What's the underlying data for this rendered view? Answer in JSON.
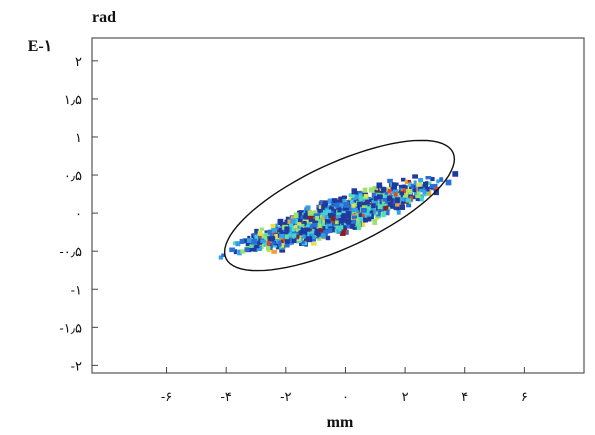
{
  "chart_data": {
    "type": "scatter",
    "x_unit": "mm",
    "y_unit": "rad",
    "y_scale_label": "E-۱",
    "xlim": [
      -8.5,
      8
    ],
    "ylim": [
      -2.1,
      2.3
    ],
    "x_ticks": [
      {
        "value": -6,
        "label": "-۶"
      },
      {
        "value": -4,
        "label": "-۴"
      },
      {
        "value": -2,
        "label": "-۲"
      },
      {
        "value": 0,
        "label": "۰"
      },
      {
        "value": 2,
        "label": "۲"
      },
      {
        "value": 4,
        "label": "۴"
      },
      {
        "value": 6,
        "label": "۶"
      }
    ],
    "y_ticks": [
      {
        "value": 2,
        "label": "۲"
      },
      {
        "value": 1.5,
        "label": "۱٫۵"
      },
      {
        "value": 1,
        "label": "۱"
      },
      {
        "value": 0.5,
        "label": "۰٫۵"
      },
      {
        "value": 0,
        "label": "۰"
      },
      {
        "value": -0.5,
        "label": "-۰٫۵"
      },
      {
        "value": -1,
        "label": "-۱"
      },
      {
        "value": -1.5,
        "label": "-۱٫۵"
      },
      {
        "value": -2,
        "label": "-۲"
      }
    ],
    "trend": {
      "slope": 0.128,
      "intercept": 0.0
    },
    "x_range": [
      -7.8,
      6.3
    ],
    "ellipse": {
      "cx": -0.2,
      "cy": 0.1,
      "half_width": 4.2,
      "half_height": 0.55,
      "tilt_deg": 25
    },
    "colors": [
      "#1f3a9e",
      "#2b6fd6",
      "#33a1e8",
      "#3fd0d8",
      "#58e0a8",
      "#9be36a",
      "#e8e04a",
      "#f0a238",
      "#e0452e",
      "#8a1f1f"
    ],
    "grid": false
  }
}
